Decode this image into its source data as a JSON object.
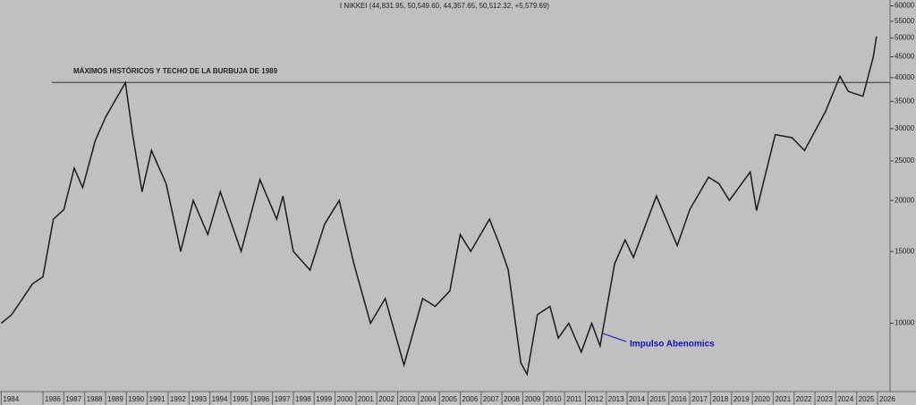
{
  "chart_data": {
    "type": "line",
    "title": "I NIKKEI (44,831.95, 50,549.60, 44,357.65, 50,512.32, +5,579.69)",
    "annotations": [
      "MÁXIMOS HISTÓRICOS Y TECHO DE LA BURBUJA DE 1989",
      "Impulso Abenomics"
    ],
    "reference_line": 38916,
    "log_scale": true,
    "series": [
      {
        "name": "NIKKEI",
        "color": "#1a1a1a",
        "x": [
          1984,
          1984.5,
          1985.5,
          1986,
          1986.5,
          1987,
          1987.5,
          1987.9,
          1988.5,
          1989,
          1989.95,
          1990.3,
          1990.75,
          1991.2,
          1991.9,
          1992.6,
          1993.2,
          1993.9,
          1994.5,
          1995.5,
          1996.4,
          1997.2,
          1997.5,
          1998,
          1998.8,
          1999.5,
          2000.2,
          2000.9,
          2001.7,
          2002.4,
          2003.3,
          2004.2,
          2004.8,
          2005.5,
          2006,
          2006.5,
          2007.4,
          2007.9,
          2008.3,
          2008.9,
          2009.2,
          2009.7,
          2010.3,
          2010.7,
          2011.2,
          2011.8,
          2012.3,
          2012.7,
          2013.4,
          2013.9,
          2014.3,
          2015.4,
          2016.4,
          2017,
          2017.9,
          2018.4,
          2018.9,
          2019.9,
          2020.2,
          2021.1,
          2021.9,
          2022.5,
          2023.5,
          2024.2,
          2024.6,
          2025.3,
          2025.8,
          2025.95
        ],
        "values": [
          10000,
          10500,
          12500,
          13000,
          18000,
          19000,
          24000,
          21500,
          28000,
          32000,
          38900,
          29000,
          21000,
          26500,
          22000,
          15000,
          20000,
          16500,
          21000,
          15000,
          22500,
          18000,
          20500,
          15000,
          13500,
          17500,
          20000,
          14000,
          10000,
          11500,
          7900,
          11500,
          11000,
          12000,
          16500,
          15000,
          18000,
          15500,
          13500,
          8000,
          7500,
          10500,
          11000,
          9200,
          10000,
          8500,
          10000,
          8800,
          14000,
          16000,
          14500,
          20500,
          15500,
          19000,
          22800,
          22000,
          20000,
          23500,
          18900,
          29000,
          28500,
          26500,
          33000,
          40300,
          37000,
          36000,
          45000,
          50500
        ]
      }
    ],
    "xlim": [
      1983.94,
      2026.6
    ],
    "xticks": [
      1984,
      1986,
      1987,
      1988,
      1989,
      1990,
      1991,
      1992,
      1993,
      1994,
      1995,
      1996,
      1997,
      1998,
      1999,
      2000,
      2001,
      2002,
      2003,
      2004,
      2005,
      2006,
      2007,
      2008,
      2009,
      2010,
      2011,
      2012,
      2013,
      2014,
      2015,
      2016,
      2017,
      2018,
      2019,
      2020,
      2021,
      2022,
      2023,
      2024,
      2025,
      2026
    ],
    "ylim": [
      6800,
      62000
    ],
    "yticks": [
      10000,
      15000,
      20000,
      25000,
      30000,
      35000,
      40000,
      45000,
      50000,
      55000,
      60000
    ]
  }
}
